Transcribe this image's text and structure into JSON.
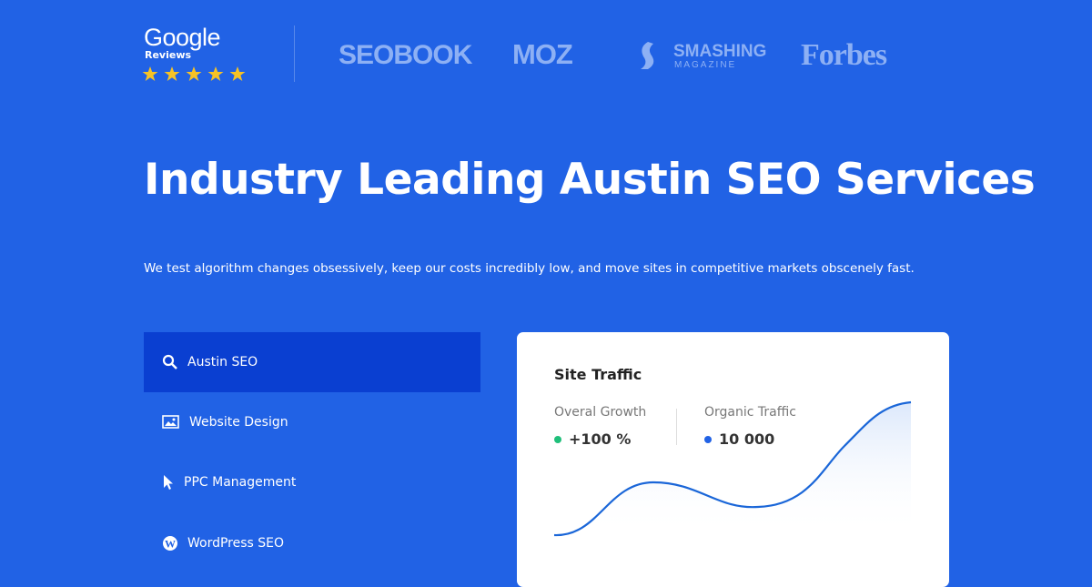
{
  "header": {
    "google": {
      "brand": "Google",
      "label": "Reviews"
    },
    "logos": [
      "SEOBOOK",
      "MOZ",
      "SMASHING",
      "MAGAZINE",
      "Forbes"
    ]
  },
  "hero": {
    "title": "Industry Leading Austin SEO Services",
    "subtitle": "We test algorithm changes obsessively, keep our costs incredibly low, and move sites in competitive markets obscenely fast."
  },
  "menu": {
    "items": [
      "Austin SEO",
      "Website Design",
      "PPC Management",
      "WordPress SEO"
    ]
  },
  "card": {
    "title": "Site Traffic",
    "stats": [
      {
        "label": "Overal Growth",
        "value": "+100 %"
      },
      {
        "label": "Organic Traffic",
        "value": "10 000"
      }
    ]
  }
}
